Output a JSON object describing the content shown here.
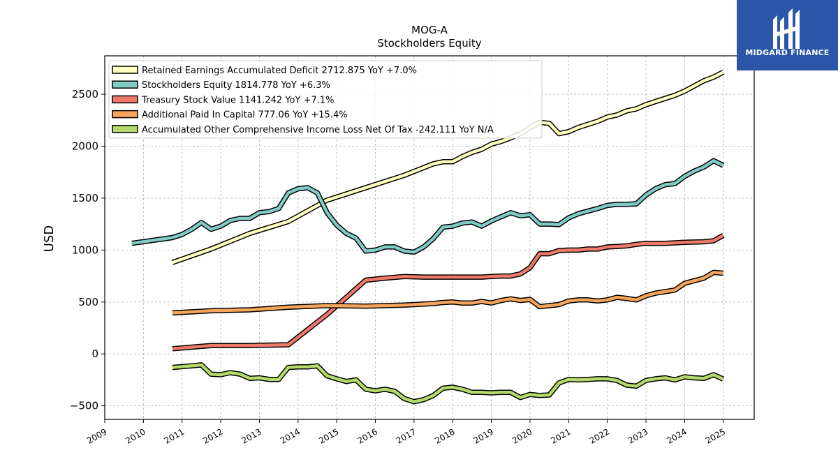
{
  "brand": {
    "name": "MIDGARD FINANCE",
    "color": "#2b56a8"
  },
  "chart_data": {
    "type": "line",
    "title": "MOG-A",
    "subtitle": "Stockholders  Equity",
    "ylabel": "USD",
    "xlabel": "",
    "xlim": [
      2009.0,
      2025.8
    ],
    "ylim": [
      -630,
      2870
    ],
    "yticks": [
      -500,
      0,
      500,
      1000,
      1500,
      2000,
      2500
    ],
    "xticks": [
      2009,
      2010,
      2011,
      2012,
      2013,
      2014,
      2015,
      2016,
      2017,
      2018,
      2019,
      2020,
      2021,
      2022,
      2023,
      2024,
      2025
    ],
    "ytick_labels": [
      "−500",
      "0",
      "500",
      "1000",
      "1500",
      "2000",
      "2500"
    ],
    "xtick_labels": [
      "2009",
      "2010",
      "2011",
      "2012",
      "2013",
      "2014",
      "2015",
      "2016",
      "2017",
      "2018",
      "2019",
      "2020",
      "2021",
      "2022",
      "2023",
      "2024",
      "2025"
    ],
    "grid": true,
    "legend_position": "top-left",
    "series": [
      {
        "name": "Retained Earnings Accumulated Deficit  2712.875 YoY +7.0%",
        "color": "#ffffbf",
        "points": [
          [
            2010.75,
            880
          ],
          [
            2011.75,
            1010
          ],
          [
            2012.75,
            1160
          ],
          [
            2013.75,
            1275
          ],
          [
            2014.75,
            1480
          ],
          [
            2015.75,
            1600
          ],
          [
            2016.75,
            1720
          ],
          [
            2017.5,
            1830
          ],
          [
            2017.75,
            1850
          ],
          [
            2018.0,
            1850
          ],
          [
            2018.25,
            1900
          ],
          [
            2018.5,
            1940
          ],
          [
            2018.75,
            1970
          ],
          [
            2019.0,
            2020
          ],
          [
            2019.25,
            2045
          ],
          [
            2019.5,
            2080
          ],
          [
            2019.75,
            2120
          ],
          [
            2020.0,
            2180
          ],
          [
            2020.25,
            2230
          ],
          [
            2020.5,
            2220
          ],
          [
            2020.75,
            2120
          ],
          [
            2021.0,
            2140
          ],
          [
            2021.25,
            2180
          ],
          [
            2021.5,
            2210
          ],
          [
            2021.75,
            2240
          ],
          [
            2022.0,
            2280
          ],
          [
            2022.25,
            2300
          ],
          [
            2022.5,
            2340
          ],
          [
            2022.75,
            2360
          ],
          [
            2023.0,
            2400
          ],
          [
            2023.25,
            2430
          ],
          [
            2023.5,
            2460
          ],
          [
            2023.75,
            2490
          ],
          [
            2024.0,
            2530
          ],
          [
            2024.25,
            2580
          ],
          [
            2024.5,
            2630
          ],
          [
            2024.75,
            2665
          ],
          [
            2025.0,
            2712.875
          ]
        ]
      },
      {
        "name": "Stockholders Equity  1814.778 YoY +6.3%",
        "color": "#80cbc4",
        "points": [
          [
            2009.7,
            1065
          ],
          [
            2010.75,
            1120
          ],
          [
            2011.0,
            1150
          ],
          [
            2011.25,
            1200
          ],
          [
            2011.5,
            1265
          ],
          [
            2011.75,
            1200
          ],
          [
            2012.0,
            1230
          ],
          [
            2012.25,
            1285
          ],
          [
            2012.5,
            1305
          ],
          [
            2012.75,
            1305
          ],
          [
            2013.0,
            1360
          ],
          [
            2013.25,
            1370
          ],
          [
            2013.5,
            1400
          ],
          [
            2013.75,
            1550
          ],
          [
            2014.0,
            1590
          ],
          [
            2014.25,
            1600
          ],
          [
            2014.5,
            1550
          ],
          [
            2014.75,
            1360
          ],
          [
            2015.0,
            1240
          ],
          [
            2015.25,
            1160
          ],
          [
            2015.5,
            1115
          ],
          [
            2015.75,
            990
          ],
          [
            2016.0,
            1000
          ],
          [
            2016.25,
            1030
          ],
          [
            2016.5,
            1030
          ],
          [
            2016.75,
            990
          ],
          [
            2017.0,
            980
          ],
          [
            2017.25,
            1030
          ],
          [
            2017.5,
            1110
          ],
          [
            2017.75,
            1220
          ],
          [
            2018.0,
            1230
          ],
          [
            2018.25,
            1260
          ],
          [
            2018.5,
            1270
          ],
          [
            2018.75,
            1230
          ],
          [
            2019.0,
            1280
          ],
          [
            2019.25,
            1320
          ],
          [
            2019.5,
            1360
          ],
          [
            2019.75,
            1330
          ],
          [
            2020.0,
            1340
          ],
          [
            2020.25,
            1250
          ],
          [
            2020.5,
            1250
          ],
          [
            2020.75,
            1245
          ],
          [
            2021.0,
            1310
          ],
          [
            2021.25,
            1350
          ],
          [
            2021.5,
            1375
          ],
          [
            2021.75,
            1400
          ],
          [
            2022.0,
            1430
          ],
          [
            2022.25,
            1440
          ],
          [
            2022.5,
            1440
          ],
          [
            2022.75,
            1445
          ],
          [
            2023.0,
            1530
          ],
          [
            2023.25,
            1590
          ],
          [
            2023.5,
            1630
          ],
          [
            2023.75,
            1640
          ],
          [
            2024.0,
            1710
          ],
          [
            2024.25,
            1760
          ],
          [
            2024.5,
            1800
          ],
          [
            2024.75,
            1860
          ],
          [
            2025.0,
            1814.778
          ]
        ]
      },
      {
        "name": "Treasury Stock Value  1141.242 YoY +7.1%",
        "color": "#f07a6a",
        "points": [
          [
            2010.75,
            50
          ],
          [
            2011.25,
            65
          ],
          [
            2011.75,
            80
          ],
          [
            2012.25,
            80
          ],
          [
            2012.75,
            80
          ],
          [
            2013.25,
            85
          ],
          [
            2013.75,
            88
          ],
          [
            2014.75,
            380
          ],
          [
            2015.75,
            710
          ],
          [
            2016.25,
            730
          ],
          [
            2016.75,
            745
          ],
          [
            2017.25,
            740
          ],
          [
            2017.75,
            740
          ],
          [
            2018.25,
            740
          ],
          [
            2018.75,
            740
          ],
          [
            2019.0,
            745
          ],
          [
            2019.25,
            750
          ],
          [
            2019.5,
            750
          ],
          [
            2019.75,
            770
          ],
          [
            2020.0,
            830
          ],
          [
            2020.25,
            965
          ],
          [
            2020.5,
            965
          ],
          [
            2020.75,
            995
          ],
          [
            2021.0,
            1000
          ],
          [
            2021.25,
            1000
          ],
          [
            2021.5,
            1010
          ],
          [
            2021.75,
            1010
          ],
          [
            2022.0,
            1030
          ],
          [
            2022.25,
            1035
          ],
          [
            2022.5,
            1040
          ],
          [
            2022.75,
            1055
          ],
          [
            2023.0,
            1065
          ],
          [
            2023.5,
            1065
          ],
          [
            2024.0,
            1075
          ],
          [
            2024.5,
            1080
          ],
          [
            2024.75,
            1090
          ],
          [
            2025.0,
            1141.242
          ]
        ]
      },
      {
        "name": "Additional Paid In Capital  777.06 YoY +15.4%",
        "color": "#f5a55a",
        "points": [
          [
            2010.75,
            395
          ],
          [
            2011.75,
            415
          ],
          [
            2012.75,
            425
          ],
          [
            2013.75,
            450
          ],
          [
            2014.75,
            465
          ],
          [
            2015.75,
            460
          ],
          [
            2016.75,
            470
          ],
          [
            2017.5,
            485
          ],
          [
            2017.75,
            495
          ],
          [
            2018.0,
            500
          ],
          [
            2018.25,
            490
          ],
          [
            2018.5,
            490
          ],
          [
            2018.75,
            505
          ],
          [
            2019.0,
            490
          ],
          [
            2019.25,
            515
          ],
          [
            2019.5,
            530
          ],
          [
            2019.75,
            515
          ],
          [
            2020.0,
            525
          ],
          [
            2020.25,
            455
          ],
          [
            2020.5,
            465
          ],
          [
            2020.75,
            475
          ],
          [
            2021.0,
            510
          ],
          [
            2021.25,
            520
          ],
          [
            2021.5,
            520
          ],
          [
            2021.75,
            510
          ],
          [
            2022.0,
            520
          ],
          [
            2022.25,
            545
          ],
          [
            2022.5,
            535
          ],
          [
            2022.75,
            520
          ],
          [
            2023.0,
            560
          ],
          [
            2023.25,
            585
          ],
          [
            2023.5,
            600
          ],
          [
            2023.75,
            615
          ],
          [
            2024.0,
            680
          ],
          [
            2024.25,
            705
          ],
          [
            2024.5,
            730
          ],
          [
            2024.75,
            785
          ],
          [
            2025.0,
            777.06
          ]
        ]
      },
      {
        "name": "Accumulated Other Comprehensive Income Loss Net Of Tax  -242.111 YoY N/A",
        "color": "#b5d96b",
        "points": [
          [
            2010.75,
            -130
          ],
          [
            2011.25,
            -115
          ],
          [
            2011.5,
            -105
          ],
          [
            2011.75,
            -195
          ],
          [
            2012.0,
            -200
          ],
          [
            2012.25,
            -180
          ],
          [
            2012.5,
            -195
          ],
          [
            2012.75,
            -235
          ],
          [
            2013.0,
            -230
          ],
          [
            2013.25,
            -245
          ],
          [
            2013.5,
            -245
          ],
          [
            2013.75,
            -130
          ],
          [
            2014.0,
            -125
          ],
          [
            2014.25,
            -125
          ],
          [
            2014.5,
            -115
          ],
          [
            2014.75,
            -210
          ],
          [
            2015.0,
            -240
          ],
          [
            2015.25,
            -265
          ],
          [
            2015.5,
            -250
          ],
          [
            2015.75,
            -340
          ],
          [
            2016.0,
            -355
          ],
          [
            2016.25,
            -340
          ],
          [
            2016.5,
            -360
          ],
          [
            2016.75,
            -430
          ],
          [
            2017.0,
            -460
          ],
          [
            2017.25,
            -440
          ],
          [
            2017.5,
            -400
          ],
          [
            2017.75,
            -330
          ],
          [
            2018.0,
            -320
          ],
          [
            2018.25,
            -340
          ],
          [
            2018.5,
            -370
          ],
          [
            2018.75,
            -370
          ],
          [
            2019.0,
            -375
          ],
          [
            2019.25,
            -370
          ],
          [
            2019.5,
            -370
          ],
          [
            2019.75,
            -420
          ],
          [
            2020.0,
            -390
          ],
          [
            2020.25,
            -400
          ],
          [
            2020.5,
            -395
          ],
          [
            2020.75,
            -280
          ],
          [
            2021.0,
            -245
          ],
          [
            2021.25,
            -250
          ],
          [
            2021.5,
            -245
          ],
          [
            2021.75,
            -240
          ],
          [
            2022.0,
            -240
          ],
          [
            2022.25,
            -255
          ],
          [
            2022.5,
            -300
          ],
          [
            2022.75,
            -310
          ],
          [
            2023.0,
            -255
          ],
          [
            2023.25,
            -240
          ],
          [
            2023.5,
            -230
          ],
          [
            2023.75,
            -250
          ],
          [
            2024.0,
            -220
          ],
          [
            2024.25,
            -230
          ],
          [
            2024.5,
            -235
          ],
          [
            2024.75,
            -200
          ],
          [
            2025.0,
            -242.111
          ]
        ]
      }
    ]
  }
}
